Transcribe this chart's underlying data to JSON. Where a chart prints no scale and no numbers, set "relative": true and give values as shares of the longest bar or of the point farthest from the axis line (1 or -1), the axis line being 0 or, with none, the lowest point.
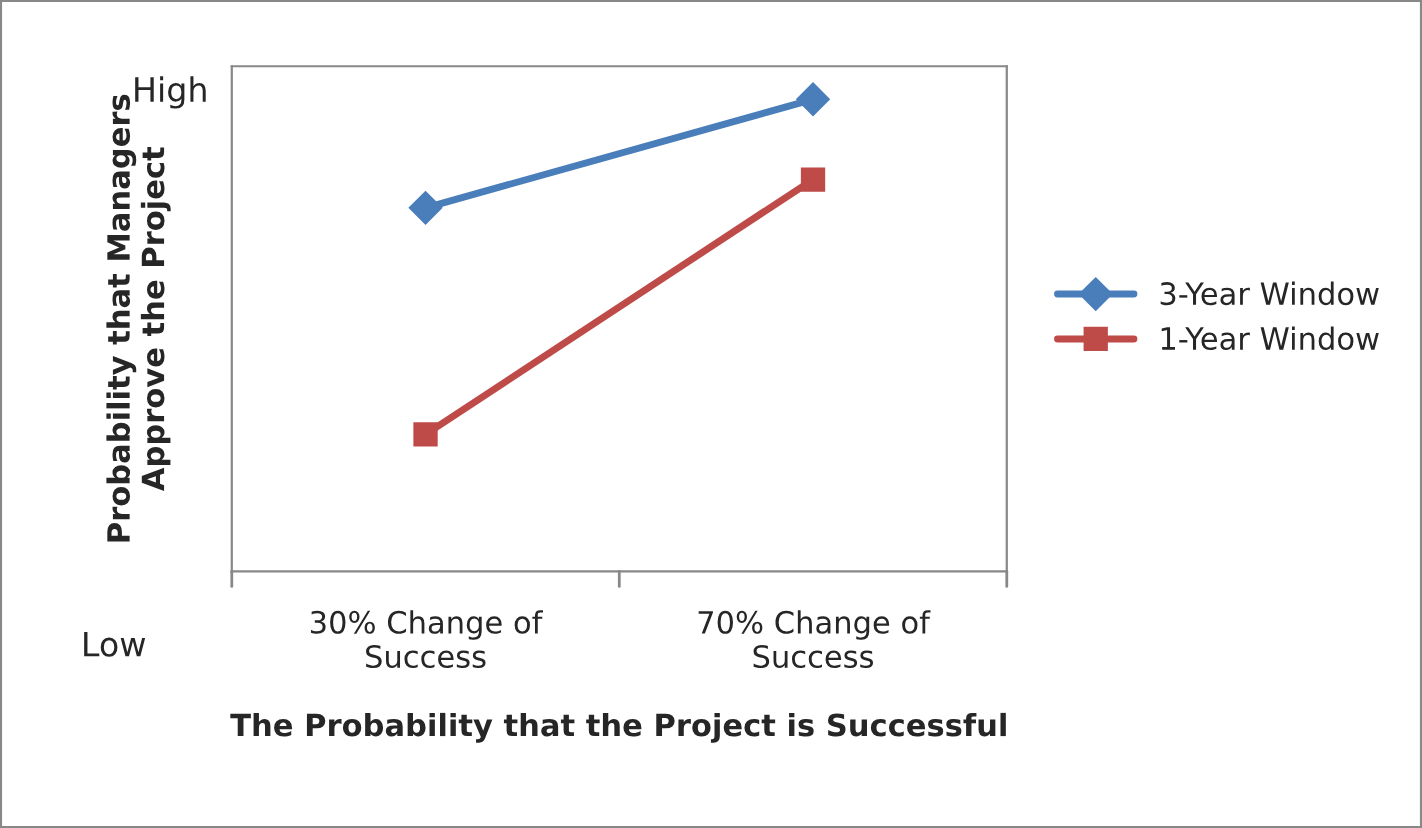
{
  "chart_data": {
    "type": "line",
    "relative": true,
    "xlabel": "The Probability that the Project is Successful",
    "ylabel": "Probability that Managers\nApprove the Project",
    "categories": [
      "30% Change of\nSuccess",
      "70% Change of\nSuccess"
    ],
    "series": [
      {
        "name": "3-Year Window",
        "color": "#4a7ebb",
        "marker": "diamond",
        "values": [
          0.77,
          1
        ]
      },
      {
        "name": "1-Year Window",
        "color": "#be4b48",
        "marker": "square",
        "values": [
          0.29,
          0.83
        ]
      }
    ],
    "annotations": [
      "High",
      "Low"
    ],
    "legend": "right",
    "grid": false
  }
}
